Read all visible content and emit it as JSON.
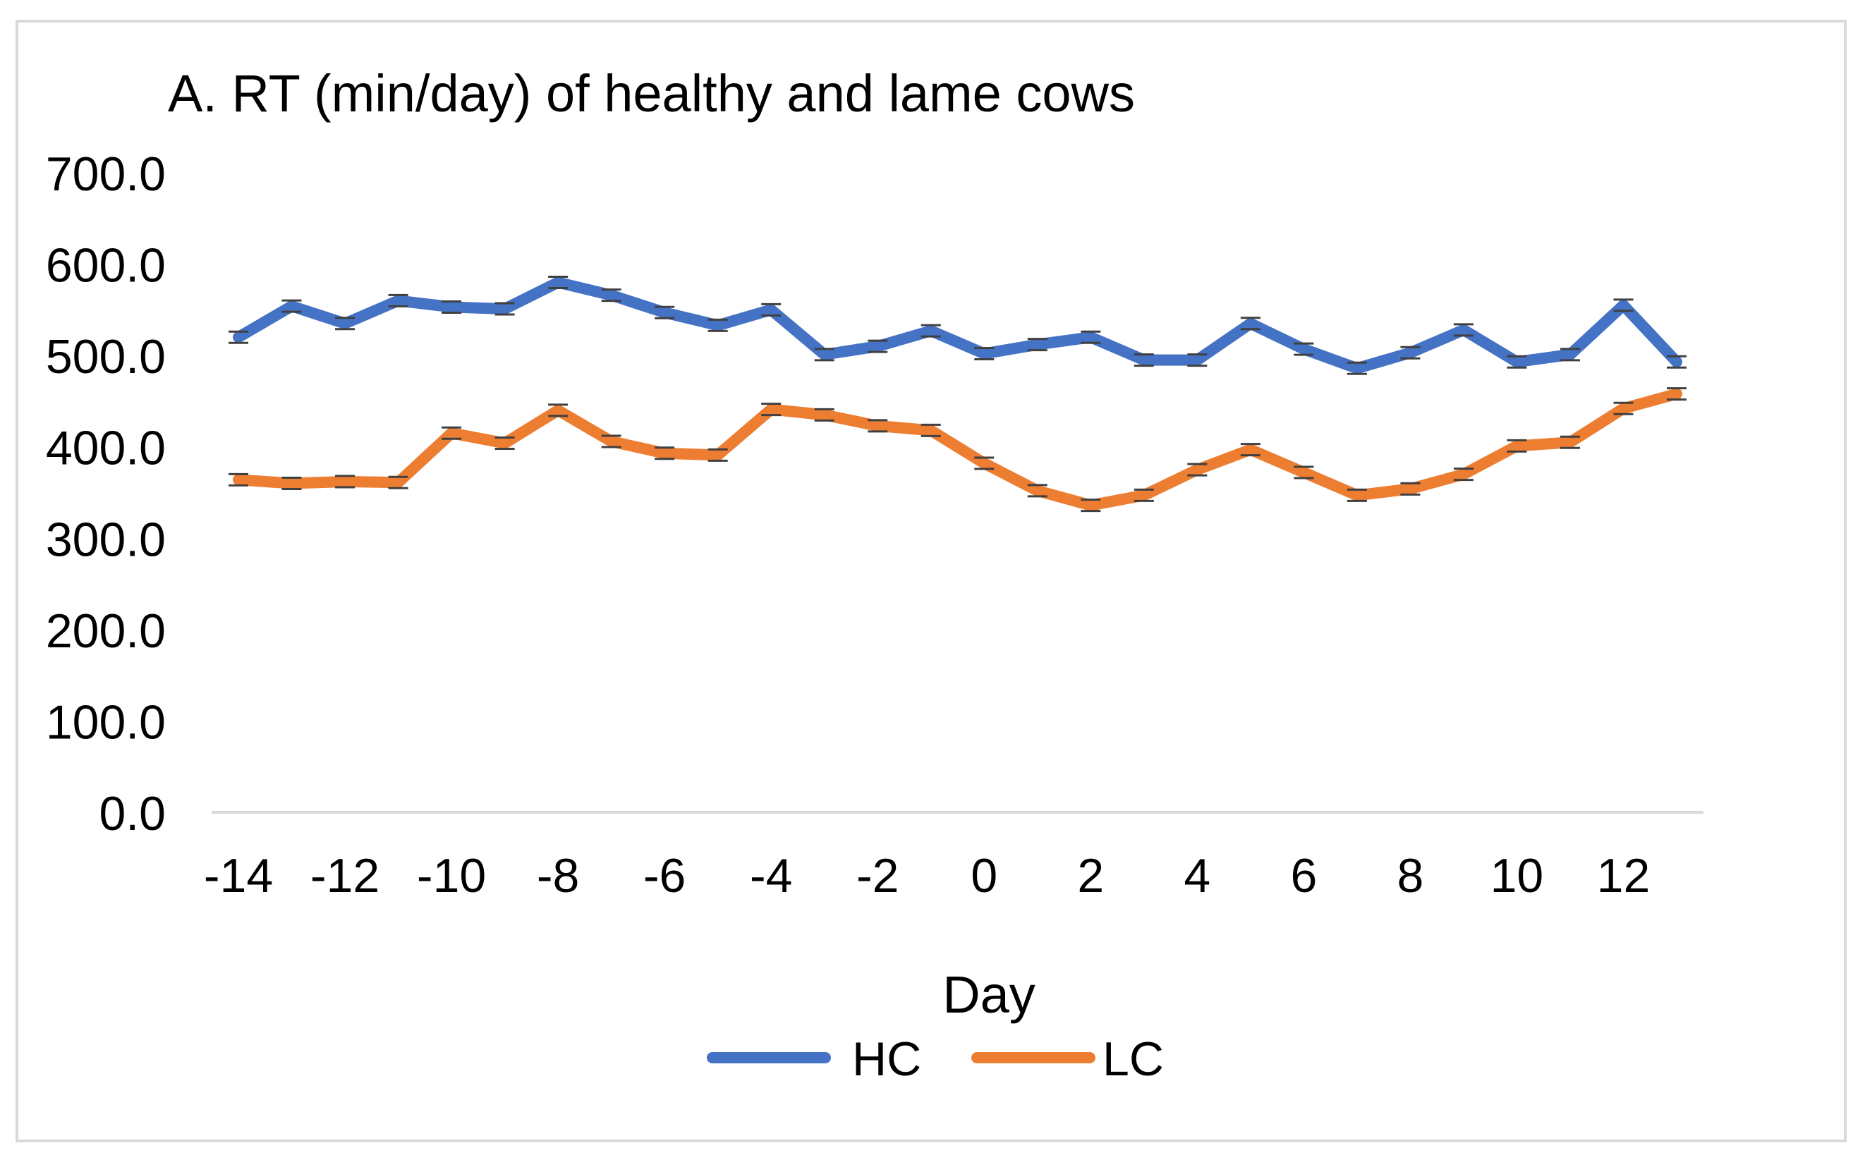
{
  "chart_data": {
    "type": "line",
    "title": "A. RT (min/day) of healthy and lame cows",
    "xlabel": "Day",
    "ylabel": "",
    "ylim": [
      0,
      700
    ],
    "y_ticks": [
      "0.0",
      "100.0",
      "200.0",
      "300.0",
      "400.0",
      "500.0",
      "600.0",
      "700.0"
    ],
    "x": [
      -14,
      -13,
      -12,
      -11,
      -10,
      -9,
      -8,
      -7,
      -6,
      -5,
      -4,
      -3,
      -2,
      -1,
      0,
      1,
      2,
      3,
      4,
      5,
      6,
      7,
      8,
      9,
      10,
      11,
      12,
      13
    ],
    "x_tick_labels": [
      "-14",
      "-12",
      "-10",
      "-8",
      "-6",
      "-4",
      "-2",
      "0",
      "2",
      "4",
      "6",
      "8",
      "10",
      "12"
    ],
    "grid": false,
    "legend_position": "bottom",
    "series": [
      {
        "name": "HC",
        "color": "#4472c4",
        "values": [
          520,
          554,
          535,
          560,
          553,
          551,
          580,
          566,
          547,
          533,
          550,
          501,
          510,
          527,
          502,
          512,
          520,
          495,
          495,
          535,
          507,
          486,
          503,
          528,
          493,
          501,
          555,
          493
        ]
      },
      {
        "name": "LC",
        "color": "#ed7d31",
        "values": [
          364,
          360,
          362,
          361,
          415,
          404,
          440,
          406,
          393,
          391,
          441,
          435,
          423,
          418,
          382,
          352,
          336,
          347,
          375,
          397,
          372,
          347,
          354,
          370,
          401,
          405,
          442,
          458
        ]
      }
    ]
  }
}
